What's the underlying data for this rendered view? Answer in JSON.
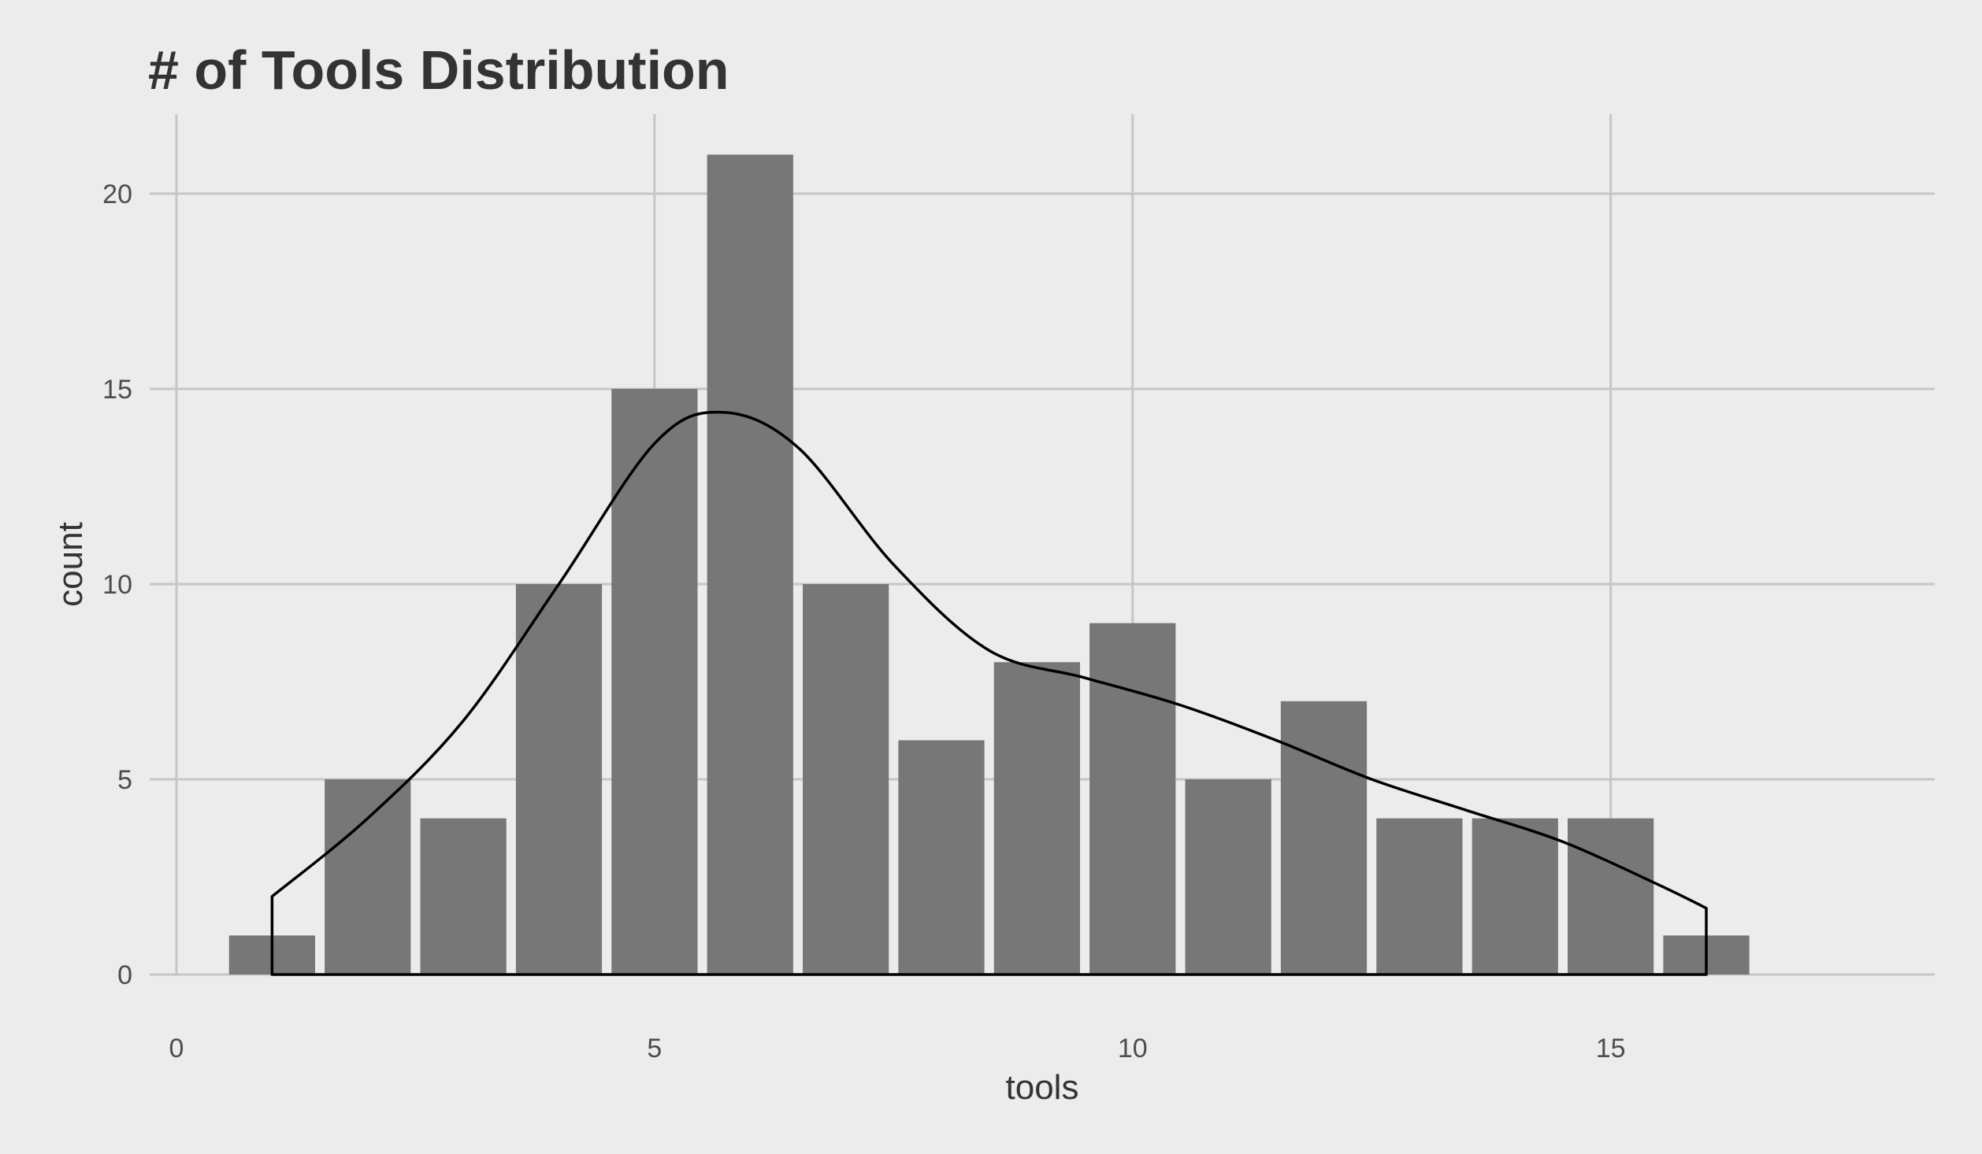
{
  "chart_data": {
    "type": "bar",
    "title": "# of Tools Distribution",
    "xlabel": "tools",
    "ylabel": "count",
    "x": [
      1,
      2,
      3,
      4,
      5,
      6,
      7,
      8,
      9,
      10,
      11,
      12,
      13,
      14,
      15,
      16
    ],
    "values": [
      1,
      5,
      4,
      10,
      15,
      21,
      10,
      6,
      8,
      9,
      5,
      7,
      4,
      4,
      4,
      1
    ],
    "xlim": [
      0,
      17
    ],
    "ylim": [
      0,
      21
    ],
    "x_ticks": [
      0,
      5,
      10,
      15
    ],
    "y_ticks": [
      0,
      5,
      10,
      15,
      20
    ],
    "grid": true,
    "legend": "none",
    "density_overlay": {
      "x": [
        1,
        2,
        3,
        4,
        5,
        5.7,
        6.5,
        7.5,
        8.5,
        9.5,
        10.5,
        11.5,
        12.5,
        13.5,
        14.5,
        15.5,
        16
      ],
      "y": [
        2.0,
        4.0,
        6.5,
        10.0,
        13.6,
        14.4,
        13.5,
        10.5,
        8.3,
        7.6,
        6.9,
        6.0,
        5.0,
        4.2,
        3.4,
        2.3,
        1.7
      ]
    },
    "colors": {
      "background": "#ececec",
      "grid": "#c6c6c6",
      "bar_fill": "#777777",
      "density_line": "#000000",
      "text": "#333333"
    }
  }
}
